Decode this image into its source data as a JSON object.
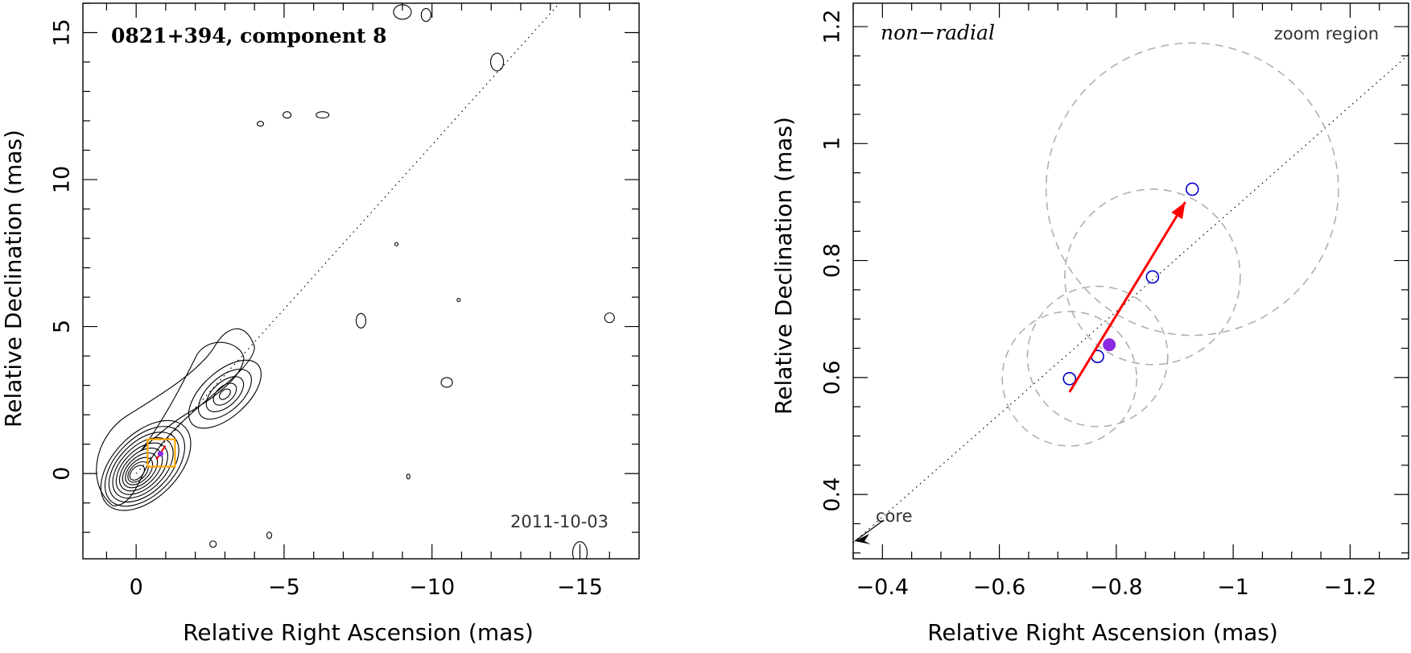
{
  "chart_data": [
    {
      "type": "contour",
      "title": "0821+394, component 8",
      "date": "2011-10-03",
      "xlabel": "Relative Right Ascension (mas)",
      "ylabel": "Relative Declination (mas)",
      "xlim": [
        1.8,
        -17
      ],
      "ylim": [
        -2.9,
        16
      ],
      "xticks": [
        0,
        -5,
        -10,
        -15
      ],
      "xtick_labels": [
        "0",
        "−5",
        "−10",
        "−15"
      ],
      "yticks": [
        0,
        5,
        10,
        15
      ],
      "ytick_labels": [
        "0",
        "5",
        "10",
        "15"
      ],
      "core_contour_levels": 10,
      "knot_center": [
        -3,
        2.7
      ],
      "component_box": {
        "x": -0.85,
        "y": 0.7,
        "color": "#ffa500"
      },
      "jet_axis_angle_deg": 48
    },
    {
      "type": "scatter",
      "title": "non−radial",
      "corner_label": "zoom region",
      "core_label": "core",
      "xlabel": "Relative Right Ascension (mas)",
      "ylabel": "Relative Declination (mas)",
      "xlim": [
        -0.35,
        -1.3
      ],
      "ylim": [
        0.29,
        1.24
      ],
      "xticks": [
        -0.4,
        -0.6,
        -0.8,
        -1,
        -1.2
      ],
      "xtick_labels": [
        "−0.4",
        "−0.6",
        "−0.8",
        "−1",
        "−1.2"
      ],
      "yticks": [
        0.4,
        0.6,
        0.8,
        1,
        1.2
      ],
      "ytick_labels": [
        "0.4",
        "0.6",
        "0.8",
        "1",
        "1.2"
      ],
      "epochs": [
        {
          "x": -0.72,
          "y": 0.598,
          "r": 0.115
        },
        {
          "x": -0.768,
          "y": 0.636,
          "r": 0.12
        },
        {
          "x": -0.862,
          "y": 0.772,
          "r": 0.15
        },
        {
          "x": -0.93,
          "y": 0.922,
          "r": 0.25
        }
      ],
      "mean_position": {
        "x": -0.788,
        "y": 0.656,
        "color": "#8a2be2"
      },
      "velocity_vector": {
        "from": [
          -0.72,
          0.575
        ],
        "to": [
          -0.918,
          0.9
        ],
        "color": "#ff0000"
      },
      "epoch_marker_color": "#0000cc"
    }
  ]
}
